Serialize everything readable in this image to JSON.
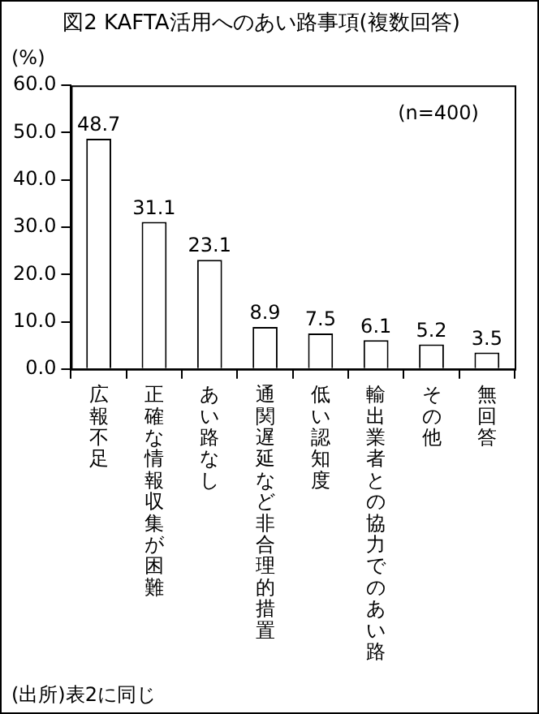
{
  "chart_data": {
    "type": "bar",
    "title": "図2 KAFTA活用へのあい路事項(複数回答)",
    "ylabel": "(%)",
    "categories": [
      "広報不足",
      "正確な情報収集が困難",
      "あい路なし",
      "通関遅延など非合理的措置",
      "低い認知度",
      "輸出業者との協力でのあい路",
      "その他",
      "無回答"
    ],
    "values": [
      48.7,
      31.1,
      23.1,
      8.9,
      7.5,
      6.1,
      5.2,
      3.5
    ],
    "color": "#ffffff",
    "ylim": [
      0,
      60
    ],
    "yticks": [
      {
        "value": 0,
        "label": "0.0"
      },
      {
        "value": 10,
        "label": "10.0"
      },
      {
        "value": 20,
        "label": "20.0"
      },
      {
        "value": 30,
        "label": "30.0"
      },
      {
        "value": 40,
        "label": "40.0"
      },
      {
        "value": 50,
        "label": "50.0"
      },
      {
        "value": 60,
        "label": "60.0"
      }
    ],
    "grid": false,
    "legend": false,
    "data_labels": true,
    "annotations": [
      "(n=400)",
      "(出所)表2に同じ"
    ]
  }
}
